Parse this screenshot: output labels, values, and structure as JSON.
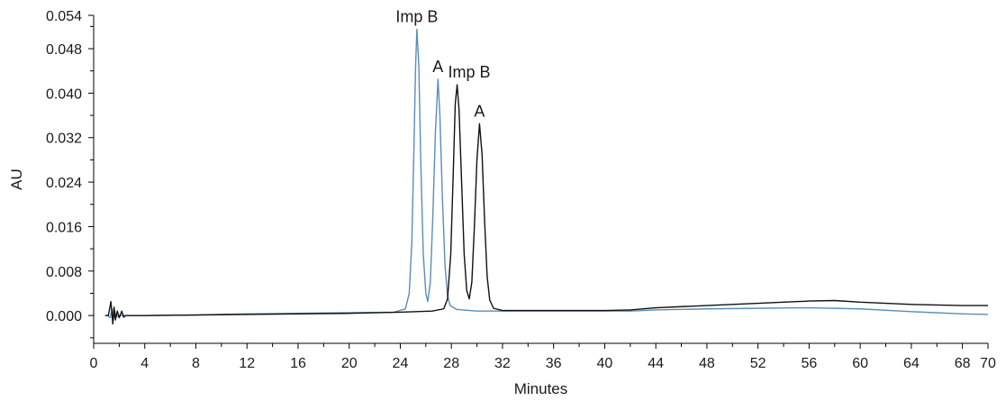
{
  "chart_data": {
    "type": "line",
    "title": "",
    "xlabel": "Minutes",
    "ylabel": "AU",
    "xlim": [
      0,
      70
    ],
    "ylim": [
      -0.005,
      0.054
    ],
    "x_ticks": [
      0,
      4,
      8,
      12,
      16,
      20,
      24,
      28,
      32,
      36,
      40,
      44,
      48,
      52,
      56,
      60,
      64,
      68,
      70
    ],
    "y_ticks": [
      0.0,
      0.008,
      0.016,
      0.024,
      0.032,
      0.04,
      0.048,
      0.054
    ],
    "y_tick_labels": [
      "0.000",
      "0.008",
      "0.016",
      "0.024",
      "0.032",
      "0.040",
      "0.048",
      "0.054"
    ],
    "grid": false,
    "series": [
      {
        "color": "#5b8db8",
        "points": [
          [
            0.9,
            0.0
          ],
          [
            1.1,
            0.0
          ],
          [
            1.3,
            -0.0004
          ],
          [
            1.45,
            0.0012
          ],
          [
            1.55,
            -0.0006
          ],
          [
            1.65,
            0.0008
          ],
          [
            1.75,
            -0.0002
          ],
          [
            2.0,
            0.0
          ],
          [
            4,
            0.0
          ],
          [
            8,
            0.0001
          ],
          [
            12,
            0.0003
          ],
          [
            16,
            0.0004
          ],
          [
            20,
            0.0005
          ],
          [
            23.5,
            0.0006
          ],
          [
            24.4,
            0.0012
          ],
          [
            24.7,
            0.004
          ],
          [
            24.9,
            0.013
          ],
          [
            25.05,
            0.028
          ],
          [
            25.2,
            0.045
          ],
          [
            25.3,
            0.0515
          ],
          [
            25.45,
            0.045
          ],
          [
            25.6,
            0.028
          ],
          [
            25.8,
            0.011
          ],
          [
            26.0,
            0.004
          ],
          [
            26.15,
            0.0025
          ],
          [
            26.35,
            0.006
          ],
          [
            26.55,
            0.018
          ],
          [
            26.75,
            0.033
          ],
          [
            26.95,
            0.0425
          ],
          [
            27.1,
            0.036
          ],
          [
            27.3,
            0.021
          ],
          [
            27.5,
            0.009
          ],
          [
            27.7,
            0.0035
          ],
          [
            27.9,
            0.0018
          ],
          [
            28.4,
            0.0011
          ],
          [
            30,
            0.0008
          ],
          [
            34,
            0.0008
          ],
          [
            38,
            0.0008
          ],
          [
            42,
            0.0008
          ],
          [
            44,
            0.001
          ],
          [
            48,
            0.0012
          ],
          [
            52,
            0.0013
          ],
          [
            56,
            0.0014
          ],
          [
            60,
            0.0012
          ],
          [
            64,
            0.0007
          ],
          [
            68,
            0.0003
          ],
          [
            70,
            0.0002
          ]
        ]
      },
      {
        "color": "#111111",
        "points": [
          [
            0.9,
            0.0
          ],
          [
            1.15,
            0.0
          ],
          [
            1.35,
            0.0025
          ],
          [
            1.5,
            -0.0015
          ],
          [
            1.6,
            0.0015
          ],
          [
            1.7,
            -0.0008
          ],
          [
            1.85,
            0.0008
          ],
          [
            2.0,
            -0.0004
          ],
          [
            2.2,
            0.0008
          ],
          [
            2.35,
            -0.0003
          ],
          [
            2.5,
            0.0
          ],
          [
            4,
            0.0
          ],
          [
            8,
            0.0001
          ],
          [
            12,
            0.0002
          ],
          [
            16,
            0.0003
          ],
          [
            20,
            0.0004
          ],
          [
            24,
            0.0006
          ],
          [
            26.5,
            0.0008
          ],
          [
            27.4,
            0.0012
          ],
          [
            27.7,
            0.003
          ],
          [
            27.95,
            0.011
          ],
          [
            28.15,
            0.026
          ],
          [
            28.3,
            0.038
          ],
          [
            28.45,
            0.0415
          ],
          [
            28.6,
            0.037
          ],
          [
            28.8,
            0.024
          ],
          [
            29.0,
            0.011
          ],
          [
            29.2,
            0.0045
          ],
          [
            29.4,
            0.003
          ],
          [
            29.6,
            0.006
          ],
          [
            29.8,
            0.016
          ],
          [
            30.0,
            0.028
          ],
          [
            30.2,
            0.0345
          ],
          [
            30.4,
            0.029
          ],
          [
            30.6,
            0.017
          ],
          [
            30.8,
            0.007
          ],
          [
            31.0,
            0.0028
          ],
          [
            31.3,
            0.0013
          ],
          [
            32,
            0.0009
          ],
          [
            36,
            0.0009
          ],
          [
            40,
            0.0009
          ],
          [
            42,
            0.001
          ],
          [
            44,
            0.0014
          ],
          [
            48,
            0.0018
          ],
          [
            52,
            0.0022
          ],
          [
            56,
            0.0026
          ],
          [
            58,
            0.0027
          ],
          [
            60,
            0.0024
          ],
          [
            64,
            0.002
          ],
          [
            68,
            0.0018
          ],
          [
            70,
            0.0018
          ]
        ]
      }
    ],
    "annotations": [
      {
        "text": "Imp B",
        "x": 25.3,
        "y": 0.0515
      },
      {
        "text": "A",
        "x": 26.95,
        "y": 0.0425
      },
      {
        "text": "Imp B",
        "x": 29.4,
        "y": 0.0415
      },
      {
        "text": "A",
        "x": 30.2,
        "y": 0.0345
      }
    ]
  }
}
